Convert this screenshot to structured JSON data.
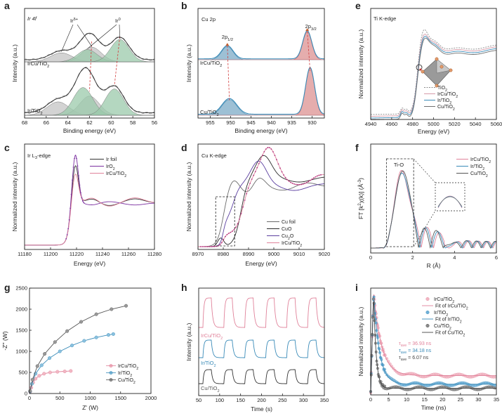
{
  "chart_data": [
    {
      "panel": "a",
      "type": "line",
      "title": "Ir 4f",
      "xlabel": "Binding energy (eV)",
      "ylabel": "Intensity (a.u.)",
      "xlim": [
        68,
        56
      ],
      "xticks": [
        68,
        66,
        64,
        62,
        60,
        58,
        56
      ],
      "annotations": [
        "Irδ+",
        "Ir0"
      ],
      "samples": [
        "IrCu/TiO2",
        "Ir/TiO2"
      ],
      "peaks": [
        {
          "sample": "IrCu/TiO2",
          "state": "Irδ+",
          "positions": [
            64.6,
            61.8
          ]
        },
        {
          "sample": "IrCu/TiO2",
          "state": "Ir0",
          "positions": [
            62.2,
            59.2
          ]
        },
        {
          "sample": "Ir/TiO2",
          "state": "Irδ+",
          "positions": [
            64.9,
            62.0
          ]
        },
        {
          "sample": "Ir/TiO2",
          "state": "Ir0",
          "positions": [
            62.6,
            59.7
          ]
        }
      ]
    },
    {
      "panel": "b",
      "type": "line",
      "title": "Cu 2p",
      "xlabel": "Binding energy (eV)",
      "ylabel": "Intensity (a.u.)",
      "xlim": [
        958,
        927
      ],
      "xticks": [
        955,
        950,
        945,
        940,
        935,
        930
      ],
      "annotations": [
        "2p1/2",
        "2p3/2"
      ],
      "samples": [
        "IrCu/TiO2",
        "Cu/TiO2"
      ],
      "peaks": [
        {
          "sample": "IrCu/TiO2",
          "positions": [
            950.8,
            931.2
          ]
        },
        {
          "sample": "Cu/TiO2",
          "positions": [
            950.3,
            930.5
          ]
        }
      ]
    },
    {
      "panel": "e",
      "type": "line",
      "title": "Ti K-edge",
      "xlabel": "Energy (eV)",
      "ylabel": "Normalized intensity (a.u.)",
      "xlim": [
        4940,
        5060
      ],
      "xticks": [
        4940,
        4960,
        4980,
        5000,
        5020,
        5040,
        5060
      ],
      "series": [
        {
          "name": "TiO2"
        },
        {
          "name": "IrCu/TiO2"
        },
        {
          "name": "Ir/TiO2"
        },
        {
          "name": "Cu/TiO2"
        }
      ],
      "edge_energy": 4983
    },
    {
      "panel": "c",
      "type": "line",
      "title": "Ir L3-edge",
      "xlabel": "Energy (eV)",
      "ylabel": "Normalized intensity (a.u.)",
      "xlim": [
        11180,
        11280
      ],
      "xticks": [
        11180,
        11200,
        11220,
        11240,
        11260,
        11280
      ],
      "series": [
        {
          "name": "Ir foil"
        },
        {
          "name": "IrO2"
        },
        {
          "name": "IrCu/TiO2"
        }
      ],
      "white_line_energy": 11219
    },
    {
      "panel": "d",
      "type": "line",
      "title": "Cu K-edge",
      "xlabel": "Energy (eV)",
      "ylabel": "Normalized intensity (a.u.)",
      "xlim": [
        8970,
        9020
      ],
      "xticks": [
        8970,
        8980,
        8990,
        9000,
        9010,
        9020
      ],
      "series": [
        {
          "name": "Cu foil"
        },
        {
          "name": "CuO"
        },
        {
          "name": "Cu2O"
        },
        {
          "name": "IrCu/TiO2"
        }
      ]
    },
    {
      "panel": "f",
      "type": "line",
      "xlabel": "R (Å)",
      "ylabel": "FT [k2χ(k)] (Å-3)",
      "xlim": [
        0,
        6
      ],
      "xticks": [
        0,
        2,
        4,
        6
      ],
      "annotations": [
        "Ti-O"
      ],
      "series": [
        {
          "name": "IrCu/TiO2"
        },
        {
          "name": "Ir/TiO2"
        },
        {
          "name": "Cu/TiO2"
        }
      ],
      "main_peak_R": 1.5
    },
    {
      "panel": "g",
      "type": "scatter",
      "xlabel": "Z' (W)",
      "ylabel": "-Z'' (W)",
      "xlim": [
        0,
        2000
      ],
      "ylim": [
        0,
        2500
      ],
      "xticks": [
        0,
        500,
        1000,
        1500,
        2000
      ],
      "yticks": [
        0,
        500,
        1000,
        1500,
        2000,
        2500
      ],
      "series": [
        {
          "name": "IrCu/TiO2",
          "x": [
            10,
            30,
            60,
            100,
            160,
            240,
            340,
            460,
            580,
            680
          ],
          "y": [
            40,
            140,
            260,
            350,
            420,
            470,
            500,
            515,
            525,
            535
          ]
        },
        {
          "name": "Ir/TiO2",
          "x": [
            10,
            40,
            100,
            200,
            330,
            500,
            700,
            900,
            1100,
            1300,
            1380
          ],
          "y": [
            50,
            230,
            470,
            670,
            840,
            1000,
            1140,
            1250,
            1330,
            1390,
            1410
          ]
        },
        {
          "name": "Cu/TiO2",
          "x": [
            10,
            50,
            130,
            250,
            420,
            620,
            850,
            1100,
            1350,
            1590
          ],
          "y": [
            60,
            330,
            650,
            940,
            1220,
            1480,
            1700,
            1880,
            2000,
            2080
          ]
        }
      ]
    },
    {
      "panel": "h",
      "type": "line",
      "xlabel": "Time (s)",
      "ylabel": "Intensity (a.u.)",
      "xlim": [
        50,
        350
      ],
      "xticks": [
        50,
        100,
        150,
        200,
        250,
        300,
        350
      ],
      "series": [
        {
          "name": "IrCu/TiO2"
        },
        {
          "name": "Ir/TiO2"
        },
        {
          "name": "Cu/TiO2"
        }
      ],
      "light_on_times": [
        60,
        110,
        160,
        210,
        260,
        310
      ],
      "light_off_times": [
        80,
        130,
        180,
        230,
        280,
        330
      ]
    },
    {
      "panel": "i",
      "type": "scatter",
      "xlabel": "Time (ns)",
      "ylabel": "Normalized intensity (a.u.)",
      "xlim": [
        0,
        35
      ],
      "xticks": [
        0,
        5,
        10,
        15,
        20,
        25,
        30,
        35
      ],
      "series": [
        {
          "name": "IrCu/TiO2",
          "fit": "Fit of IrCu/TiO2",
          "tau_ave": "36.93 ns",
          "plateau": 0.17
        },
        {
          "name": "Ir/TiO2",
          "fit": "Fit of Ir/TiO2",
          "tau_ave": "34.18 ns",
          "plateau": 0.085
        },
        {
          "name": "Cu/TiO2",
          "fit": "Fit of Cu/TiO2",
          "tau_ave": "6.07 ns",
          "plateau": 0.045
        }
      ]
    }
  ],
  "colors": {
    "irCu": "#e0829a",
    "ir": "#3a8bb8",
    "cu": "#555555",
    "dark": "#333333",
    "fillIrDelta": "#c4c4c4",
    "fillIr0": "#9bc9ab",
    "redBand": "#d06a6a",
    "blueBand": "#4d8db3",
    "guide": "#d23c3c"
  }
}
